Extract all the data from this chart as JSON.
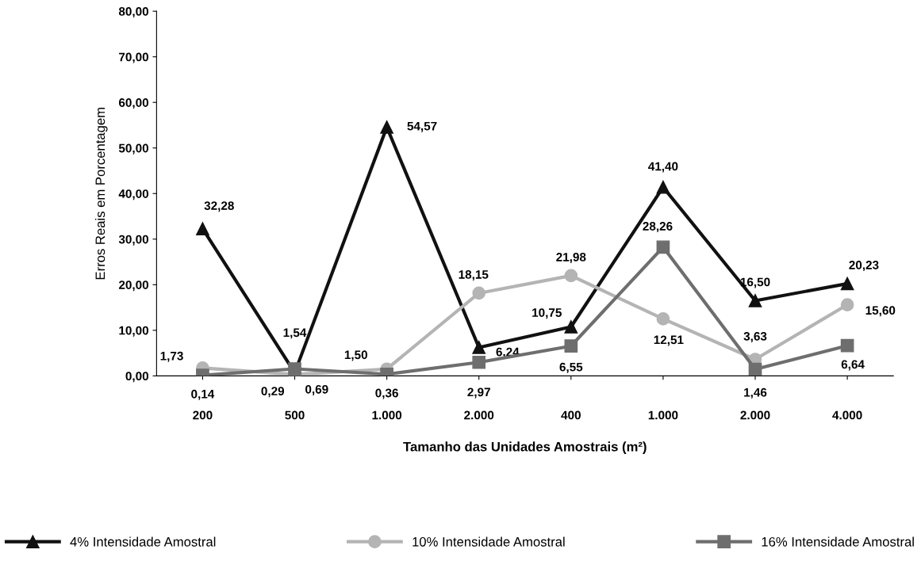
{
  "chart_data": {
    "type": "line",
    "xlabel": "Tamanho das Unidades Amostrais (m²)",
    "ylabel": "Erros Reais em Porcentagem",
    "categories": [
      "200",
      "500",
      "1.000",
      "2.000",
      "400",
      "1.000",
      "2.000",
      "4.000"
    ],
    "ylim": [
      0,
      80
    ],
    "yticks": [
      {
        "value": 0,
        "label": "0,00"
      },
      {
        "value": 10,
        "label": "10,00"
      },
      {
        "value": 20,
        "label": "20,00"
      },
      {
        "value": 30,
        "label": "30,00"
      },
      {
        "value": 40,
        "label": "40,00"
      },
      {
        "value": 50,
        "label": "50,00"
      },
      {
        "value": 60,
        "label": "60,00"
      },
      {
        "value": 70,
        "label": "70,00"
      },
      {
        "value": 80,
        "label": "80,00"
      }
    ],
    "grid": false,
    "legend": "bottom",
    "line_style": "solid",
    "series": [
      {
        "name": "4% Intensidade Amostral",
        "color": "#111111",
        "marker": "triangle",
        "values": [
          32.28,
          0.69,
          54.57,
          6.24,
          10.75,
          41.4,
          16.5,
          20.23
        ],
        "value_labels": [
          "32,28",
          "0,69",
          "54,57",
          "6,24",
          "10,75",
          "41,40",
          "16,50",
          "20,23"
        ]
      },
      {
        "name": "10% Intensidade Amostral",
        "color": "#b4b4b4",
        "marker": "circle",
        "values": [
          1.73,
          0.29,
          1.5,
          18.15,
          21.98,
          12.51,
          3.63,
          15.6
        ],
        "value_labels": [
          "1,73",
          "0,29",
          "1,50",
          "18,15",
          "21,98",
          "12,51",
          "3,63",
          "15,60"
        ]
      },
      {
        "name": "16% Intensidade Amostral",
        "color": "#6e6e6e",
        "marker": "square",
        "values": [
          0.14,
          1.54,
          0.36,
          2.97,
          6.55,
          28.26,
          1.46,
          6.64
        ],
        "value_labels": [
          "0,14",
          "1,54",
          "0,36",
          "2,97",
          "6,55",
          "28,26",
          "1,46",
          "6,64"
        ]
      }
    ]
  }
}
